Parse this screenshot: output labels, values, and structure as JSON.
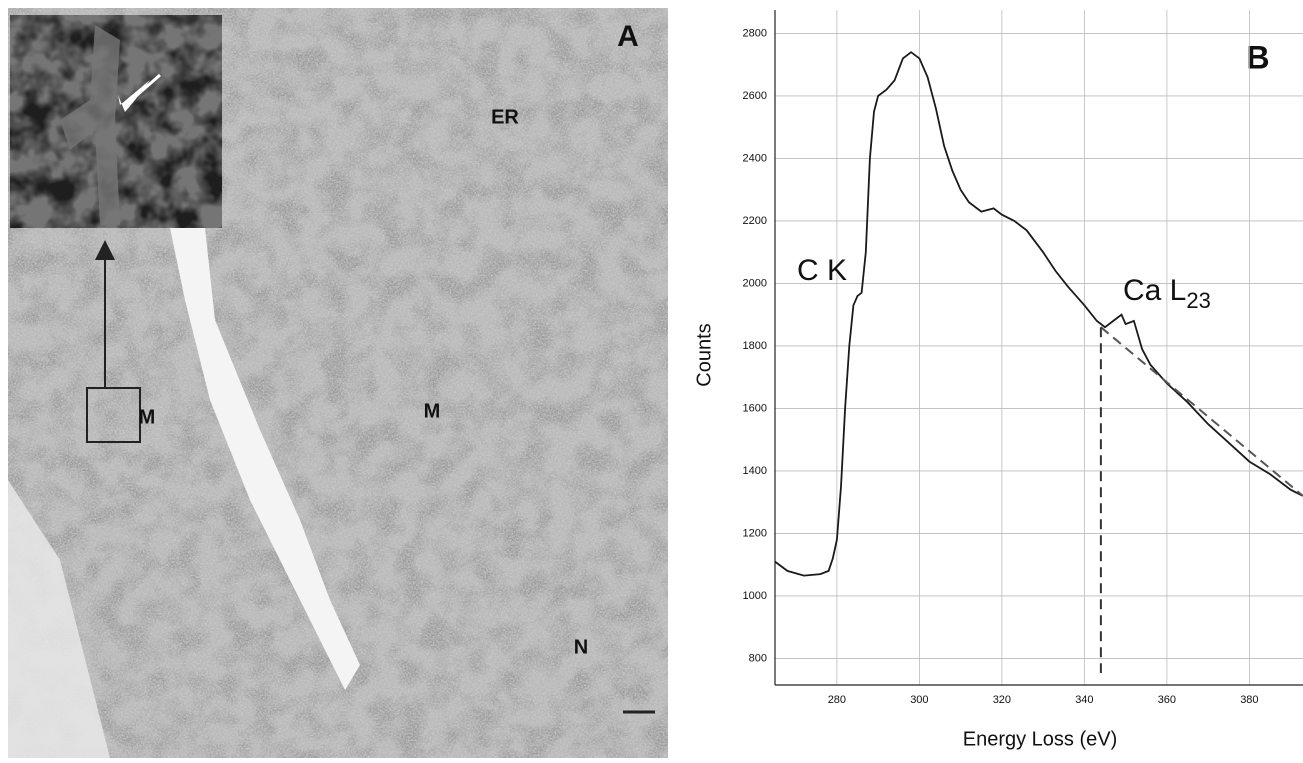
{
  "panel_a": {
    "letter": "A",
    "labels": [
      "ER",
      "M",
      "M",
      "N"
    ]
  },
  "chart_data": {
    "type": "line",
    "panel_letter": "B",
    "x_label": "Energy Loss (eV)",
    "y_label": "Counts",
    "xlim": [
      265,
      393
    ],
    "ylim": [
      715,
      2875
    ],
    "xticks": [
      280,
      300,
      320,
      340,
      360,
      380
    ],
    "yticks": [
      800,
      1000,
      1200,
      1400,
      1600,
      1800,
      2000,
      2200,
      2400,
      2600,
      2800
    ],
    "grid": true,
    "annotations": [
      {
        "text": "C K"
      },
      {
        "text": "Ca L",
        "sub": "23"
      }
    ],
    "series": [
      {
        "color": "#1a1a1a",
        "x": [
          265,
          268,
          272,
          276,
          278,
          279,
          280,
          281,
          282,
          283,
          284,
          285,
          286,
          287,
          288,
          289,
          290,
          292,
          294,
          296,
          298,
          300,
          302,
          304,
          306,
          308,
          310,
          312,
          315,
          318,
          320,
          323,
          326,
          330,
          333,
          336,
          340,
          343,
          345,
          347,
          349,
          350,
          352,
          354,
          356,
          360,
          365,
          370,
          375,
          380,
          385,
          390,
          393
        ],
        "values": [
          1110,
          1080,
          1065,
          1070,
          1080,
          1120,
          1180,
          1350,
          1600,
          1800,
          1930,
          1960,
          1970,
          2100,
          2400,
          2550,
          2600,
          2620,
          2650,
          2720,
          2740,
          2720,
          2660,
          2560,
          2440,
          2360,
          2300,
          2260,
          2230,
          2240,
          2220,
          2200,
          2170,
          2100,
          2040,
          1990,
          1930,
          1880,
          1860,
          1880,
          1900,
          1870,
          1880,
          1790,
          1740,
          1680,
          1620,
          1550,
          1490,
          1430,
          1390,
          1340,
          1320
        ]
      },
      {
        "color": "#555555",
        "dashed": true,
        "x": [
          344,
          393
        ],
        "values": [
          1860,
          1320
        ]
      }
    ],
    "marker_line": {
      "x": 344,
      "y": 1860
    }
  }
}
